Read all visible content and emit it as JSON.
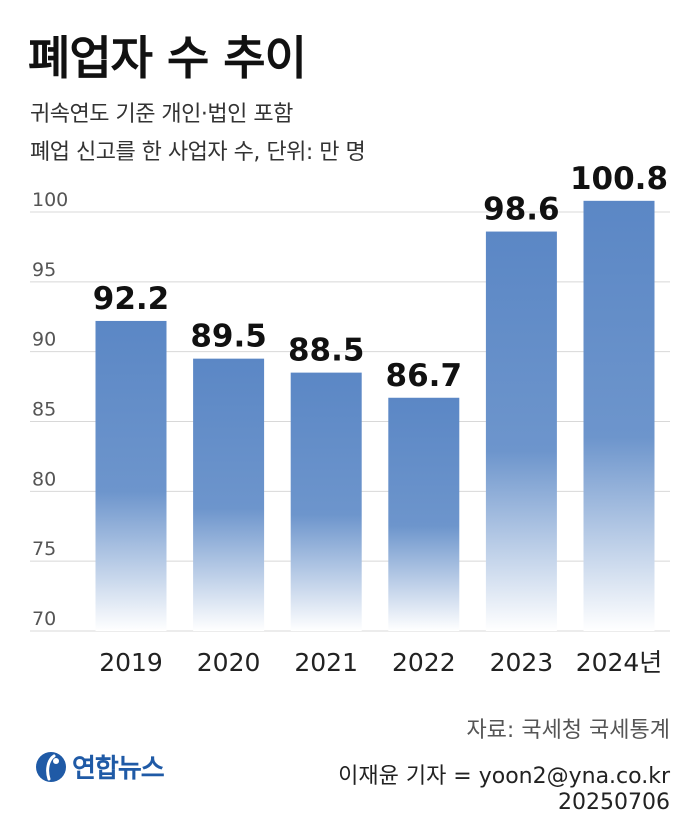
{
  "header": {
    "title": "폐업자 수 추이",
    "subtitle_line1": "귀속연도 기준 개인·법인 포함",
    "subtitle_line2": "폐업 신고를 한 사업자 수, 단위: 만 명"
  },
  "chart_data": {
    "type": "bar",
    "categories": [
      "2019",
      "2020",
      "2021",
      "2022",
      "2023",
      "2024년"
    ],
    "values": [
      92.2,
      89.5,
      88.5,
      86.7,
      98.6,
      100.8
    ],
    "data_labels": [
      "92.2",
      "89.5",
      "88.5",
      "86.7",
      "98.6",
      "100.8"
    ],
    "ylim": [
      70,
      100
    ],
    "yticks": [
      70,
      75,
      80,
      85,
      90,
      95,
      100
    ],
    "grid": true,
    "bar_color": "#5b87c5"
  },
  "footer": {
    "source": "자료: 국세청 국세통계",
    "logo": "연합뉴스",
    "reporter": "이재윤 기자 = yoon2@yna.co.kr",
    "date": "20250706"
  }
}
